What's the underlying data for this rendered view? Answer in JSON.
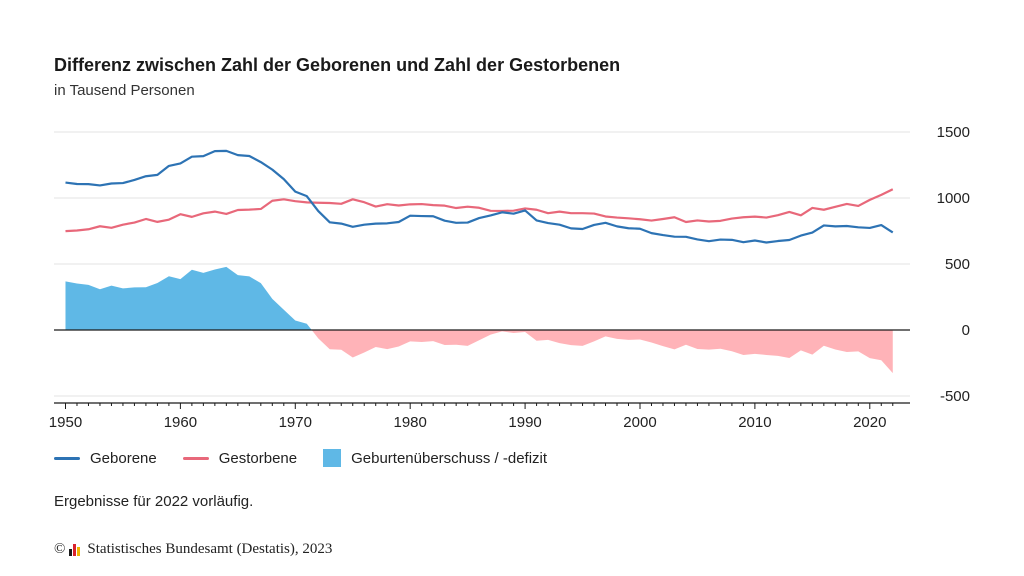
{
  "header": {
    "title": "Differenz zwischen Zahl der Geborenen und Zahl der Gestorbenen",
    "subtitle": "in Tausend Personen"
  },
  "legend": {
    "births": "Geborene",
    "deaths": "Gestorbene",
    "balance": "Geburtenüberschuss / -defizit"
  },
  "note": "Ergebnisse für 2022 vorläufig.",
  "source": {
    "copyright_symbol": "©",
    "text": "Statistisches Bundesamt (Destatis), 2023"
  },
  "colors": {
    "births": "#2d73b4",
    "deaths": "#e8687a",
    "surplus": "#5fb8e6",
    "deficit": "#ffb3b8",
    "logo": [
      "#1a1a1a",
      "#d9232e",
      "#f0b400"
    ]
  },
  "chart_data": {
    "type": "line",
    "title": "Differenz zwischen Zahl der Geborenen und Zahl der Gestorbenen",
    "subtitle": "in Tausend Personen",
    "x": [
      1950,
      1951,
      1952,
      1953,
      1954,
      1955,
      1956,
      1957,
      1958,
      1959,
      1960,
      1961,
      1962,
      1963,
      1964,
      1965,
      1966,
      1967,
      1968,
      1969,
      1970,
      1971,
      1972,
      1973,
      1974,
      1975,
      1976,
      1977,
      1978,
      1979,
      1980,
      1981,
      1982,
      1983,
      1984,
      1985,
      1986,
      1987,
      1988,
      1989,
      1990,
      1991,
      1992,
      1993,
      1994,
      1995,
      1996,
      1997,
      1998,
      1999,
      2000,
      2001,
      2002,
      2003,
      2004,
      2005,
      2006,
      2007,
      2008,
      2009,
      2010,
      2011,
      2012,
      2013,
      2014,
      2015,
      2016,
      2017,
      2018,
      2019,
      2020,
      2021,
      2022
    ],
    "series": [
      {
        "name": "Geborene",
        "values": [
          1117,
          1106,
          1105,
          1095,
          1110,
          1113,
          1137,
          1165,
          1175,
          1243,
          1262,
          1313,
          1317,
          1355,
          1357,
          1325,
          1318,
          1272,
          1215,
          1143,
          1048,
          1014,
          901,
          816,
          806,
          782,
          798,
          806,
          808,
          818,
          866,
          863,
          862,
          828,
          812,
          814,
          848,
          868,
          892,
          881,
          906,
          830,
          810,
          798,
          770,
          765,
          796,
          812,
          785,
          771,
          767,
          734,
          719,
          707,
          706,
          686,
          673,
          685,
          683,
          665,
          678,
          663,
          674,
          682,
          715,
          738,
          792,
          785,
          788,
          778,
          773,
          795,
          739
        ]
      },
      {
        "name": "Gestorbene",
        "values": [
          749,
          754,
          763,
          786,
          774,
          798,
          814,
          841,
          819,
          836,
          877,
          857,
          884,
          897,
          879,
          909,
          912,
          917,
          979,
          990,
          976,
          967,
          964,
          962,
          956,
          990,
          968,
          935,
          953,
          943,
          952,
          954,
          946,
          942,
          924,
          934,
          926,
          903,
          902,
          904,
          921,
          911,
          885,
          897,
          885,
          885,
          882,
          860,
          852,
          846,
          839,
          829,
          841,
          854,
          818,
          830,
          822,
          827,
          844,
          854,
          859,
          852,
          870,
          894,
          869,
          925,
          911,
          933,
          955,
          940,
          986,
          1024,
          1066
        ]
      },
      {
        "name": "Geburtenüberschuss / -defizit",
        "values": [
          368,
          352,
          342,
          309,
          336,
          315,
          323,
          324,
          356,
          407,
          385,
          456,
          433,
          458,
          478,
          416,
          406,
          355,
          236,
          153,
          72,
          47,
          -63,
          -146,
          -150,
          -208,
          -170,
          -129,
          -145,
          -125,
          -86,
          -91,
          -84,
          -114,
          -112,
          -120,
          -78,
          -35,
          -10,
          -23,
          -15,
          -81,
          -75,
          -99,
          -115,
          -120,
          -86,
          -48,
          -67,
          -75,
          -72,
          -95,
          -122,
          -147,
          -112,
          -144,
          -149,
          -142,
          -161,
          -189,
          -181,
          -189,
          -196,
          -212,
          -154,
          -187,
          -119,
          -148,
          -167,
          -162,
          -213,
          -229,
          -327
        ]
      }
    ],
    "xlabel": "",
    "ylabel": "",
    "xlim": [
      1949,
      2023.5
    ],
    "ylim": [
      -500,
      1500
    ],
    "x_ticks": [
      "1950",
      "1960",
      "1970",
      "1980",
      "1990",
      "2000",
      "2010",
      "2020"
    ],
    "y_ticks": [
      "1500",
      "1000",
      "500",
      "0",
      "-500"
    ],
    "grid": true,
    "legend_position": "bottom-left"
  }
}
